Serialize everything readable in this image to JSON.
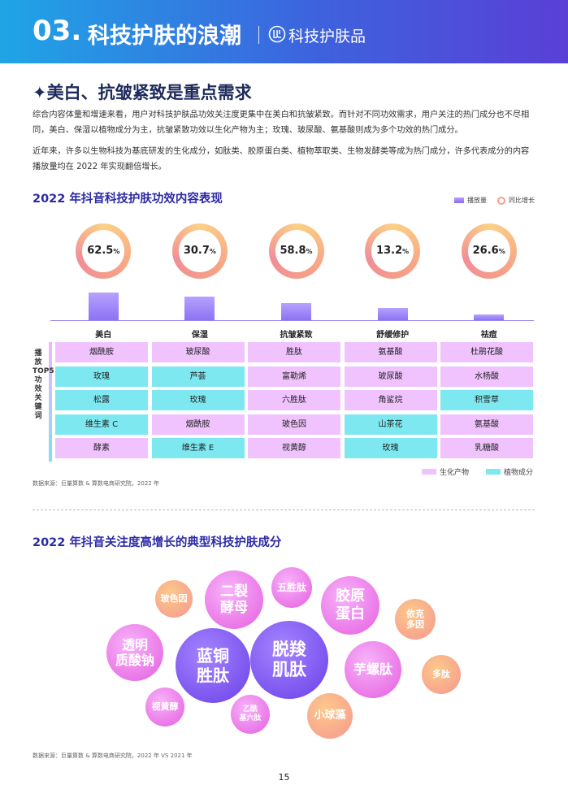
{
  "header": {
    "num": "03.",
    "title": "科技护肤的浪潮",
    "subtitle": "科技护肤品",
    "logo_icon": "brand-logo-icon"
  },
  "section": {
    "title": "✦美白、抗皱紧致是重点需求",
    "para1": "综合内容体量和增速来看，用户对科技护肤品功效关注度更集中在美白和抗皱紧致。而针对不同功效需求，用户关注的热门成分也不尽相同，美白、保湿以植物成分为主，抗皱紧致功效以生化产物为主；玫瑰、玻尿酸、氨基酸则成为多个功效的热门成分。",
    "para2": "近年来，许多以生物科技为基底研发的生化成分，如肽类、胶原蛋白类、植物萃取类、生物发酵类等成为热门成分，许多代表成分的内容播放量均在 2022 年实现翻倍增长。"
  },
  "chart1": {
    "title": "2022 年抖音科技护肤功效内容表现",
    "legend_bar": "播放量",
    "legend_ring": "同比增长",
    "side_label": "播放TOP5功效关键词",
    "legend_bio": "生化产物",
    "legend_plant": "植物成分",
    "colors": {
      "bar": "#8d72f3",
      "bio": "#f0c3ff",
      "plant": "#7de8f0",
      "ring": "#f7a185"
    },
    "source": "数据来源：巨量算数 & 算数电商研究院，2022 年"
  },
  "chart_data": {
    "type": "bar",
    "categories": [
      "美白",
      "保湿",
      "抗皱紧致",
      "舒缓修护",
      "祛痘"
    ],
    "series": [
      {
        "name": "播放量",
        "values": [
          34,
          29,
          21,
          15,
          7
        ]
      },
      {
        "name": "同比增长",
        "values": [
          62.5,
          30.7,
          58.8,
          13.2,
          26.6
        ],
        "labels": [
          "62.5",
          "30.7",
          "58.8",
          "13.2",
          "26.6"
        ],
        "unit": "%"
      }
    ],
    "keywords": [
      [
        {
          "t": "烟酰胺",
          "k": "bio"
        },
        {
          "t": "玻尿酸",
          "k": "bio"
        },
        {
          "t": "胜肽",
          "k": "bio"
        },
        {
          "t": "氨基酸",
          "k": "bio"
        },
        {
          "t": "杜鹃花酸",
          "k": "bio"
        }
      ],
      [
        {
          "t": "玫瑰",
          "k": "plant"
        },
        {
          "t": "芦荟",
          "k": "plant"
        },
        {
          "t": "富勒烯",
          "k": "bio"
        },
        {
          "t": "玻尿酸",
          "k": "bio"
        },
        {
          "t": "水杨酸",
          "k": "bio"
        }
      ],
      [
        {
          "t": "松露",
          "k": "plant"
        },
        {
          "t": "玫瑰",
          "k": "plant"
        },
        {
          "t": "六胜肽",
          "k": "bio"
        },
        {
          "t": "角鲨烷",
          "k": "bio"
        },
        {
          "t": "积雪草",
          "k": "plant"
        }
      ],
      [
        {
          "t": "维生素 C",
          "k": "plant"
        },
        {
          "t": "烟酰胺",
          "k": "bio"
        },
        {
          "t": "玻色因",
          "k": "bio"
        },
        {
          "t": "山茶花",
          "k": "plant"
        },
        {
          "t": "氨基酸",
          "k": "bio"
        }
      ],
      [
        {
          "t": "酵素",
          "k": "bio"
        },
        {
          "t": "维生素 E",
          "k": "plant"
        },
        {
          "t": "视黄醇",
          "k": "bio"
        },
        {
          "t": "玫瑰",
          "k": "plant"
        },
        {
          "t": "乳糖酸",
          "k": "bio"
        }
      ]
    ]
  },
  "chart2": {
    "title": "2022 年抖音关注度高增长的典型科技护肤成分",
    "source": "数据来源：巨量算数 & 算数电商研究院，2022 年 VS 2021 年",
    "bubbles": [
      {
        "id": "boseyin",
        "l1": "玻色因",
        "l2": "",
        "c": "peach"
      },
      {
        "id": "erlie",
        "l1": "二裂",
        "l2": "酵母",
        "c": "pink"
      },
      {
        "id": "wushengtai",
        "l1": "五胜肽",
        "l2": "",
        "c": "pink"
      },
      {
        "id": "jiaoyuan",
        "l1": "胶原",
        "l2": "蛋白",
        "c": "pink"
      },
      {
        "id": "yikeduoyin",
        "l1": "依克",
        "l2": "多因",
        "c": "peach"
      },
      {
        "id": "touming",
        "l1": "透明",
        "l2": "质酸钠",
        "c": "pink"
      },
      {
        "id": "lantong",
        "l1": "蓝铜",
        "l2": "胜肽",
        "c": "violet"
      },
      {
        "id": "tuoyang",
        "l1": "脱羧",
        "l2": "肌肽",
        "c": "violet"
      },
      {
        "id": "yuluo",
        "l1": "芋螺肽",
        "l2": "",
        "c": "pink"
      },
      {
        "id": "duotai",
        "l1": "多肽",
        "l2": "",
        "c": "peach"
      },
      {
        "id": "shihuangchun",
        "l1": "视黄醇",
        "l2": "",
        "c": "pink"
      },
      {
        "id": "yixian",
        "l1": "乙酰",
        "l2": "基六肽",
        "c": "pink"
      },
      {
        "id": "xiaoqiu",
        "l1": "小球藻",
        "l2": "",
        "c": "peach"
      }
    ]
  },
  "page_number": "15"
}
